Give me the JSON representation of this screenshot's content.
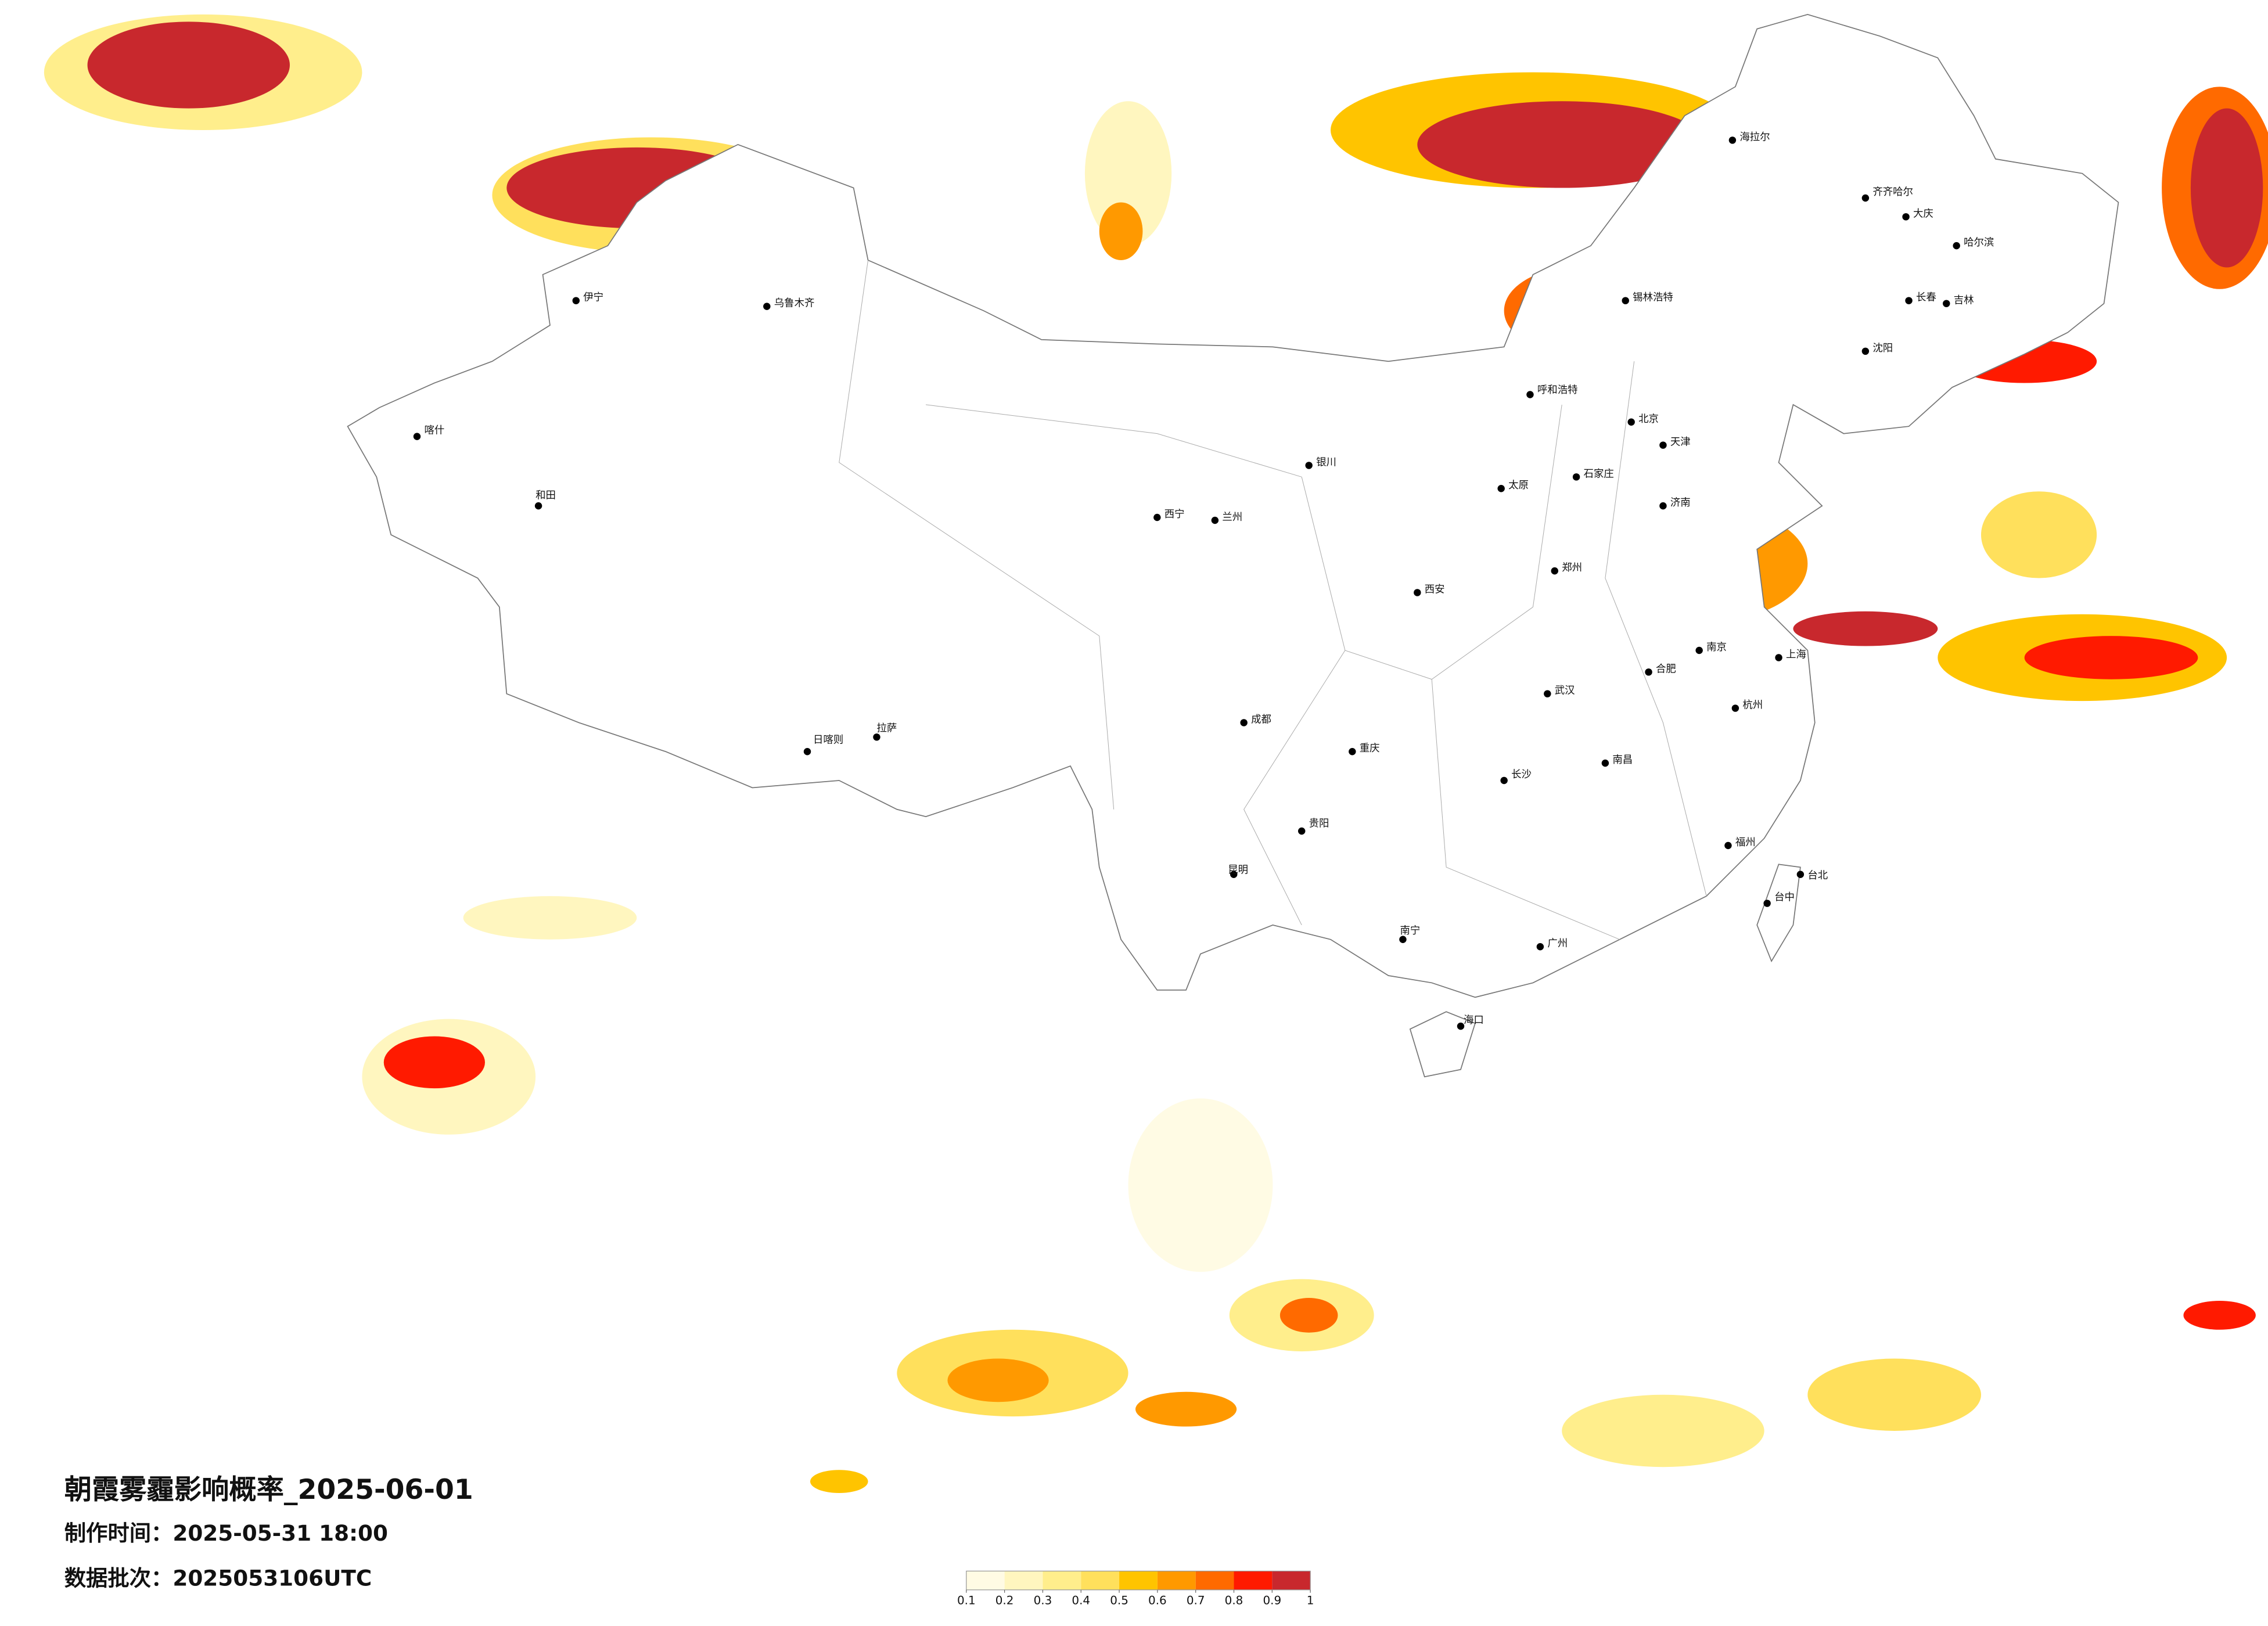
{
  "title": "朝霞雾霾影响概率_2025-06-01",
  "made_time": "制作时间：2025-05-31 18:00",
  "batch": "数据批次：2025053106UTC",
  "colorbar": {
    "ticks": [
      0.1,
      0.2,
      0.3,
      0.4,
      0.5,
      0.6,
      0.7,
      0.8,
      0.9,
      1
    ],
    "colors": [
      "#fffbe4",
      "#fff6bf",
      "#ffee8c",
      "#ffe05c",
      "#ffc400",
      "#ff9900",
      "#ff6a00",
      "#ff1a00",
      "#c8282d"
    ]
  },
  "cities": [
    "海拉尔",
    "齐齐哈尔",
    "大庆",
    "哈尔滨",
    "长春",
    "吉林",
    "沈阳",
    "呼和浩特",
    "锡林浩特",
    "北京",
    "天津",
    "石家庄",
    "太原",
    "济南",
    "郑州",
    "西安",
    "兰州",
    "西宁",
    "银川",
    "乌鲁木齐",
    "伊宁",
    "喀什",
    "和田",
    "拉萨",
    "日喀则",
    "成都",
    "重庆",
    "贵阳",
    "昆明",
    "南宁",
    "海口",
    "广州",
    "长沙",
    "武汉",
    "南昌",
    "合肥",
    "南京",
    "上海",
    "杭州",
    "福州",
    "台北",
    "台中"
  ]
}
